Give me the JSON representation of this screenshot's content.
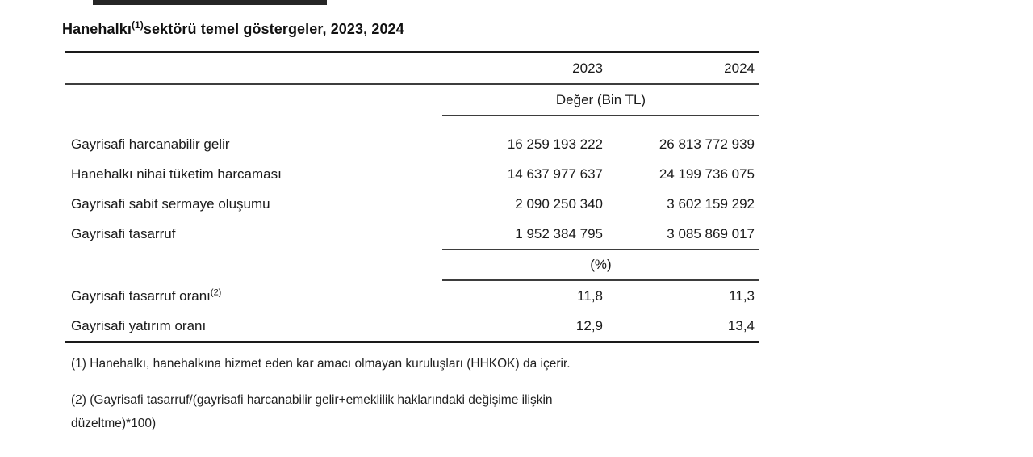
{
  "colors": {
    "text": "#1c1c1c",
    "rule_thick": "#1a1a1a",
    "rule_thin": "#3d3d3d",
    "top_artifact": "#262626"
  },
  "title": {
    "part1": "Hanehalkı",
    "sup": "(1)",
    "part2": "sektörü temel göstergeler, 2023, 2024"
  },
  "table": {
    "col_headers": {
      "y2023": "2023",
      "y2024": "2024"
    },
    "section1_header": "Değer (Bin TL)",
    "rows": [
      {
        "label": "Gayrisafi harcanabilir gelir",
        "y2023": "16 259 193 222",
        "y2024": "26 813 772 939"
      },
      {
        "label": "Hanehalkı nihai tüketim harcaması",
        "y2023": "14 637 977 637",
        "y2024": "24 199 736 075"
      },
      {
        "label": "Gayrisafi sabit sermaye oluşumu",
        "y2023": "2 090 250 340",
        "y2024": "3 602 159 292"
      },
      {
        "label": "Gayrisafi tasarruf",
        "y2023": "1 952 384 795",
        "y2024": "3 085 869 017"
      }
    ],
    "section2_header": "(%)",
    "ratio_rows": [
      {
        "label": "Gayrisafi tasarruf oranı",
        "sup": "(2)",
        "y2023": "11,8",
        "y2024": "11,3"
      },
      {
        "label": "Gayrisafi yatırım oranı",
        "sup": "",
        "y2023": "12,9",
        "y2024": "13,4"
      }
    ]
  },
  "footnotes": {
    "note1": "(1) Hanehalkı, hanehalkına hizmet eden kar amacı olmayan kuruluşları (HHKOK) da içerir.",
    "note2_line1": "(2) (Gayrisafi tasarruf/(gayrisafi harcanabilir gelir+emeklilik haklarındaki değişime ilişkin",
    "note2_line2": "düzeltme)*100)"
  }
}
